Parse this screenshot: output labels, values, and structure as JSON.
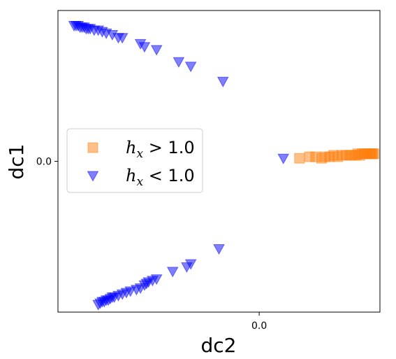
{
  "chart_data": {
    "type": "scatter",
    "xlabel": "dc2",
    "ylabel": "dc1",
    "xticks": [
      {
        "value": 0.0,
        "label": "0.0"
      }
    ],
    "yticks": [
      {
        "value": 0.0,
        "label": "0.0"
      }
    ],
    "xlim": [
      -1.0,
      0.6
    ],
    "ylim": [
      -1.0,
      1.0
    ],
    "legend_position": "center-left",
    "series": [
      {
        "name": "h_x > 1.0",
        "legend_math": "h",
        "legend_sub": "x",
        "legend_rest": " > 1.0",
        "marker": "square",
        "color": "#ff7f0e",
        "alpha": 0.5,
        "points": [
          [
            0.2,
            0.02
          ],
          [
            0.25,
            0.03
          ],
          [
            0.28,
            0.03
          ],
          [
            0.31,
            0.02
          ],
          [
            0.33,
            0.03
          ],
          [
            0.35,
            0.03
          ],
          [
            0.37,
            0.04
          ],
          [
            0.39,
            0.03
          ],
          [
            0.41,
            0.04
          ],
          [
            0.43,
            0.04
          ],
          [
            0.45,
            0.04
          ],
          [
            0.46,
            0.04
          ],
          [
            0.48,
            0.04
          ],
          [
            0.49,
            0.05
          ],
          [
            0.5,
            0.04
          ],
          [
            0.51,
            0.05
          ],
          [
            0.52,
            0.05
          ],
          [
            0.53,
            0.05
          ],
          [
            0.54,
            0.05
          ],
          [
            0.55,
            0.05
          ],
          [
            0.555,
            0.05
          ],
          [
            0.56,
            0.05
          ],
          [
            0.565,
            0.05
          ],
          [
            0.57,
            0.05
          ]
        ]
      },
      {
        "name": "h_x < 1.0",
        "legend_math": "h",
        "legend_sub": "x",
        "legend_rest": " < 1.0",
        "marker": "triangle-down",
        "color": "#0000ff",
        "alpha": 0.5,
        "points": [
          [
            -0.92,
            0.9
          ],
          [
            -0.91,
            0.9
          ],
          [
            -0.9,
            0.9
          ],
          [
            -0.89,
            0.89
          ],
          [
            -0.88,
            0.89
          ],
          [
            -0.87,
            0.89
          ],
          [
            -0.86,
            0.88
          ],
          [
            -0.85,
            0.88
          ],
          [
            -0.84,
            0.88
          ],
          [
            -0.82,
            0.87
          ],
          [
            -0.8,
            0.87
          ],
          [
            -0.78,
            0.86
          ],
          [
            -0.76,
            0.85
          ],
          [
            -0.73,
            0.84
          ],
          [
            -0.7,
            0.82
          ],
          [
            -0.68,
            0.82
          ],
          [
            -0.59,
            0.78
          ],
          [
            -0.57,
            0.76
          ],
          [
            -0.51,
            0.74
          ],
          [
            -0.4,
            0.66
          ],
          [
            -0.34,
            0.63
          ],
          [
            -0.18,
            0.53
          ],
          [
            0.12,
            0.02
          ],
          [
            -0.2,
            -0.58
          ],
          [
            -0.34,
            -0.68
          ],
          [
            -0.36,
            -0.7
          ],
          [
            -0.43,
            -0.73
          ],
          [
            -0.51,
            -0.78
          ],
          [
            -0.53,
            -0.79
          ],
          [
            -0.55,
            -0.8
          ],
          [
            -0.56,
            -0.81
          ],
          [
            -0.57,
            -0.82
          ],
          [
            -0.59,
            -0.84
          ],
          [
            -0.61,
            -0.85
          ],
          [
            -0.64,
            -0.86
          ],
          [
            -0.66,
            -0.87
          ],
          [
            -0.68,
            -0.88
          ],
          [
            -0.7,
            -0.89
          ],
          [
            -0.72,
            -0.9
          ],
          [
            -0.73,
            -0.9
          ],
          [
            -0.74,
            -0.91
          ],
          [
            -0.75,
            -0.92
          ],
          [
            -0.76,
            -0.92
          ],
          [
            -0.77,
            -0.93
          ],
          [
            -0.78,
            -0.93
          ],
          [
            -0.79,
            -0.94
          ],
          [
            -0.8,
            -0.95
          ]
        ]
      }
    ]
  }
}
